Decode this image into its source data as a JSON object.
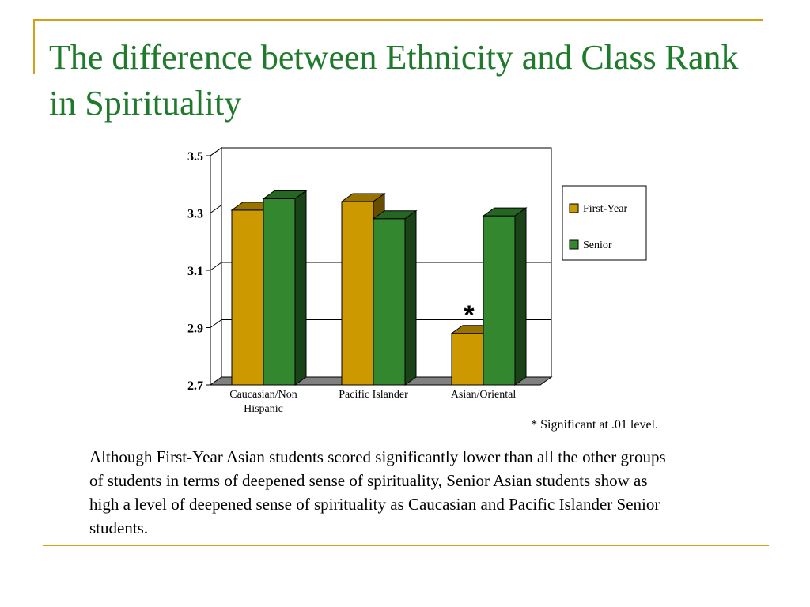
{
  "slide": {
    "title": "The difference between Ethnicity and Class Rank in Spirituality",
    "note": "* Significant at .01 level.",
    "body": "Although First-Year Asian students scored significantly lower than all the other groups of students in terms of deepened sense of spirituality, Senior Asian students show as high a level of deepened sense of spirituality as Caucasian and Pacific Islander Senior students.",
    "accent_color": "#d4a017",
    "title_color": "#1f7a2c"
  },
  "chart_data": {
    "type": "bar",
    "categories": [
      [
        "Caucasian/Non",
        "Hispanic"
      ],
      [
        "Pacific Islander"
      ],
      [
        "Asian/Oriental"
      ]
    ],
    "series": [
      {
        "name": "First-Year",
        "color": "#cc9900",
        "values": [
          3.31,
          3.34,
          2.88
        ]
      },
      {
        "name": "Senior",
        "color": "#33882f",
        "values": [
          3.35,
          3.28,
          3.29
        ]
      }
    ],
    "yticks": [
      "3.5",
      "3.3",
      "3.1",
      "2.9",
      "2.7"
    ],
    "ylim": [
      2.7,
      3.5
    ],
    "legend_position": "right",
    "annotation": {
      "text": "*",
      "category_index": 2
    },
    "grid": true
  }
}
